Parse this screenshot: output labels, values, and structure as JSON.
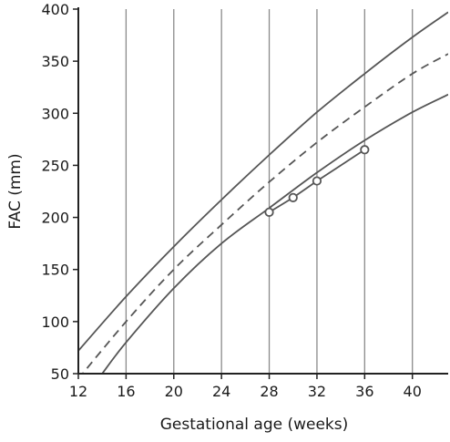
{
  "chart_data": {
    "type": "line",
    "title": "",
    "xlabel": "Gestational age (weeks)",
    "ylabel": "FAC (mm)",
    "xlim": [
      12,
      43
    ],
    "ylim": [
      50,
      400
    ],
    "x_ticks": [
      12,
      16,
      20,
      24,
      28,
      32,
      36,
      40
    ],
    "x_tick_labels": [
      "12",
      "16",
      "20",
      "24",
      "28",
      "32",
      "36",
      "40"
    ],
    "y_ticks": [
      50,
      100,
      150,
      200,
      250,
      300,
      350,
      400
    ],
    "y_tick_labels": [
      "50",
      "100",
      "150",
      "200",
      "250",
      "300",
      "350",
      "400"
    ],
    "grid": "vertical",
    "series": [
      {
        "style": "solid",
        "color": "#555555",
        "x": [
          12,
          16,
          20,
          24,
          28,
          32,
          36,
          40,
          43
        ],
        "y": [
          72,
          124,
          172,
          217,
          260,
          301,
          338,
          373,
          397
        ]
      },
      {
        "style": "dashed",
        "color": "#555555",
        "x": [
          12,
          16,
          20,
          24,
          28,
          32,
          36,
          40,
          43
        ],
        "y": [
          45,
          100,
          150,
          193,
          234,
          272,
          306,
          338,
          357
        ]
      },
      {
        "style": "solid",
        "color": "#555555",
        "x": [
          14,
          16,
          20,
          24,
          28,
          32,
          36,
          40,
          43
        ],
        "y": [
          50,
          80,
          132,
          175,
          209,
          243,
          274,
          301,
          318
        ]
      },
      {
        "style": "solid-with-markers",
        "color": "#555555",
        "x": [
          28,
          30,
          32,
          36
        ],
        "y": [
          205,
          219,
          235,
          265
        ]
      }
    ]
  }
}
